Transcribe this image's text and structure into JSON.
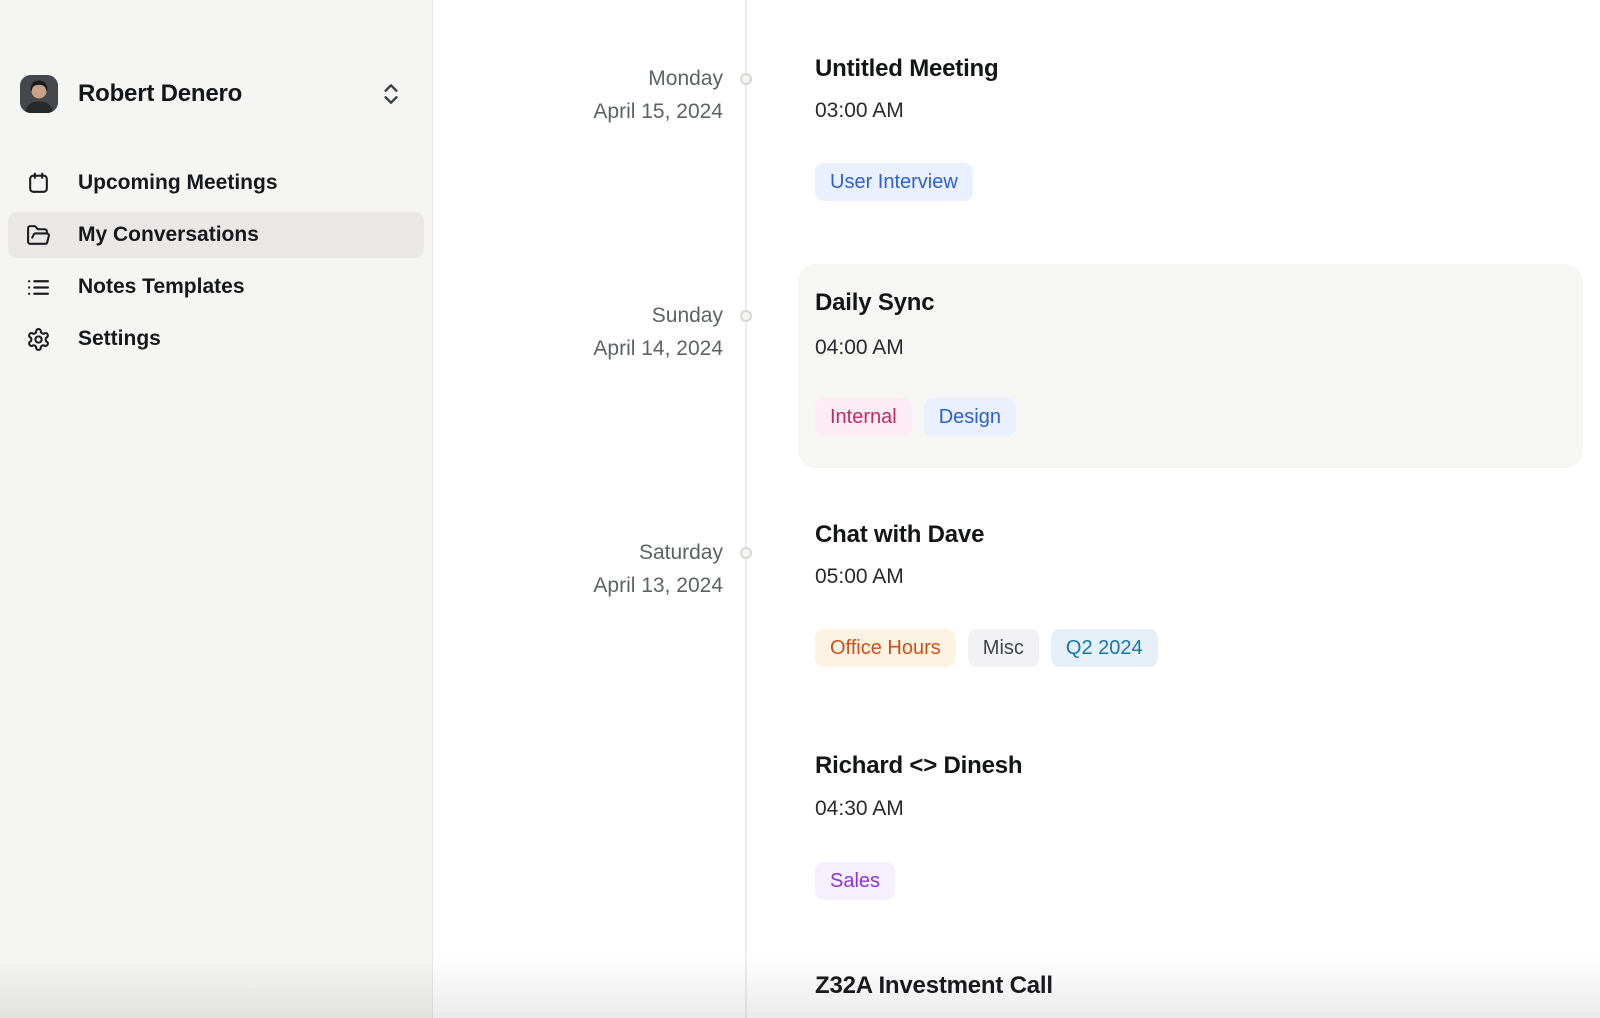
{
  "sidebar": {
    "profile": {
      "name": "Robert Denero"
    },
    "items": [
      {
        "label": "Upcoming Meetings",
        "icon": "calendar-icon",
        "selected": false
      },
      {
        "label": "My Conversations",
        "icon": "folder-open-icon",
        "selected": true
      },
      {
        "label": "Notes Templates",
        "icon": "list-icon",
        "selected": false
      },
      {
        "label": "Settings",
        "icon": "gear-icon",
        "selected": false
      }
    ]
  },
  "timeline": {
    "groups": [
      {
        "day": "Monday",
        "date": "April 15, 2024",
        "meetings": [
          {
            "title": "Untitled Meeting",
            "time": "03:00 AM",
            "highlighted": false,
            "tags": [
              {
                "label": "User Interview",
                "color": "blue"
              }
            ]
          }
        ]
      },
      {
        "day": "Sunday",
        "date": "April 14, 2024",
        "meetings": [
          {
            "title": "Daily Sync",
            "time": "04:00 AM",
            "highlighted": true,
            "tags": [
              {
                "label": "Internal",
                "color": "pink"
              },
              {
                "label": "Design",
                "color": "blue"
              }
            ]
          }
        ]
      },
      {
        "day": "Saturday",
        "date": "April 13, 2024",
        "meetings": [
          {
            "title": "Chat with Dave",
            "time": "05:00 AM",
            "highlighted": false,
            "tags": [
              {
                "label": "Office Hours",
                "color": "orange"
              },
              {
                "label": "Misc",
                "color": "gray"
              },
              {
                "label": "Q2 2024",
                "color": "cyan"
              }
            ]
          },
          {
            "title": "Richard <> Dinesh",
            "time": "04:30 AM",
            "highlighted": false,
            "tags": [
              {
                "label": "Sales",
                "color": "purple"
              }
            ]
          },
          {
            "title": "Z32A Investment Call",
            "time": "",
            "highlighted": false,
            "tags": []
          }
        ]
      }
    ]
  },
  "tag_colors": {
    "blue": {
      "bg": "#EAF1FC",
      "text": "#2B5FD2"
    },
    "pink": {
      "bg": "#FCEDF4",
      "text": "#C12A63"
    },
    "orange": {
      "bg": "#FCF3E3",
      "text": "#CE501C"
    },
    "gray": {
      "bg": "#F2F2F4",
      "text": "#3F444B"
    },
    "cyan": {
      "bg": "#E5F0F8",
      "text": "#1874AE"
    },
    "purple": {
      "bg": "#F6F0FC",
      "text": "#8C33DA"
    }
  },
  "ui_colors": {
    "sidebar_bg": "#F5F5F3",
    "selected_item_bg": "#E9E8E6",
    "highlight_card_bg": "#F6F6F5",
    "timeline_line": "#ECECEA",
    "date_text": "#5E6268"
  }
}
